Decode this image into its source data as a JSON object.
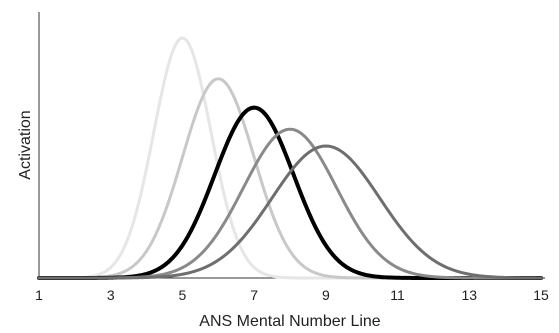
{
  "chart_data": {
    "type": "line",
    "xlabel": "ANS Mental Number Line",
    "ylabel": "Activation",
    "xlim": [
      1,
      15
    ],
    "ylim": [
      0,
      1
    ],
    "xticks": [
      "1",
      "3",
      "5",
      "7",
      "9",
      "11",
      "13",
      "15"
    ],
    "grid": false,
    "legend": "none",
    "series": [
      {
        "mean": 5,
        "sd": 0.8,
        "peak": 1.0,
        "color": "#e6e6e6",
        "width": 3
      },
      {
        "mean": 6,
        "sd": 1.0,
        "peak": 0.83,
        "color": "#c8c8c8",
        "width": 3
      },
      {
        "mean": 7,
        "sd": 1.1,
        "peak": 0.71,
        "color": "#000000",
        "width": 4
      },
      {
        "mean": 8,
        "sd": 1.3,
        "peak": 0.62,
        "color": "#8a8a8a",
        "width": 3
      },
      {
        "mean": 9,
        "sd": 1.5,
        "peak": 0.55,
        "color": "#6e6e6e",
        "width": 3
      }
    ]
  }
}
